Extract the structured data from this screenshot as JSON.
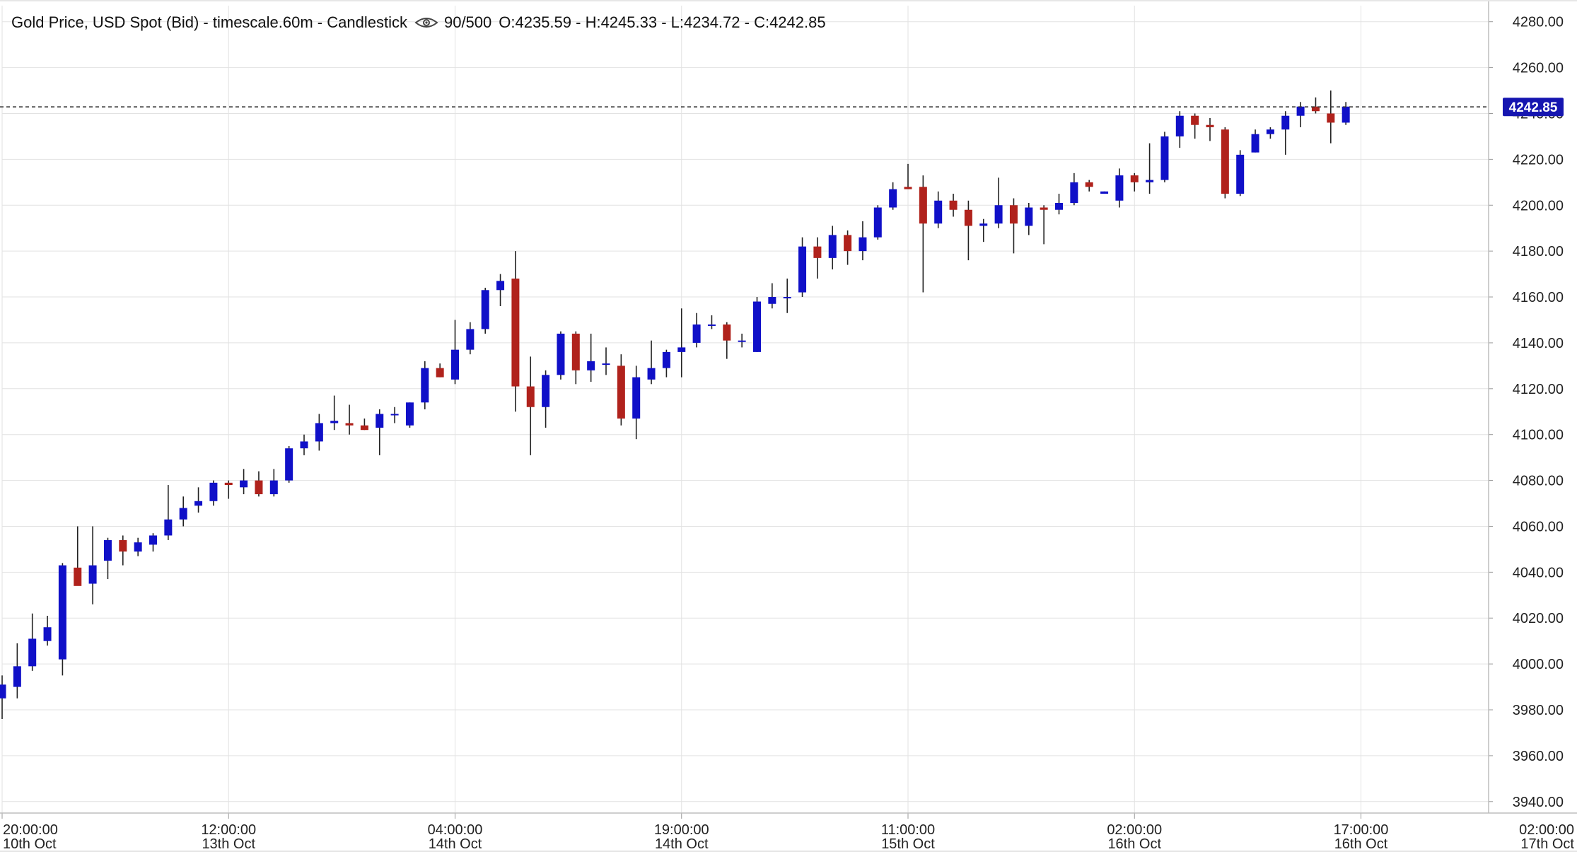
{
  "header": {
    "title": "Gold Price, USD Spot (Bid) - timescale.60m - Candlestick",
    "eye_icon": "eye-icon",
    "count": "90/500",
    "ohlc": "O:4235.59 - H:4245.33 - L:4234.72 - C:4242.85"
  },
  "colors": {
    "up": "#1010c8",
    "down": "#b0221c",
    "grid": "#e2e2e2",
    "price_line": "#333333",
    "badge": "#1515b0",
    "badge_text": "#ffffff"
  },
  "chart_data": {
    "type": "candlestick",
    "title": "Gold Price, USD Spot (Bid) - timescale.60m - Candlestick",
    "xlabel": "",
    "ylabel": "",
    "ylim": [
      3935,
      4287
    ],
    "y_ticks": [
      3940,
      3960,
      3980,
      4000,
      4020,
      4040,
      4060,
      4080,
      4100,
      4120,
      4140,
      4160,
      4180,
      4200,
      4220,
      4240,
      4260,
      4280
    ],
    "y_tick_labels": [
      "3940.00",
      "3960.00",
      "3980.00",
      "4000.00",
      "4020.00",
      "4040.00",
      "4060.00",
      "4080.00",
      "4100.00",
      "4120.00",
      "4140.00",
      "4160.00",
      "4180.00",
      "4200.00",
      "4220.00",
      "4240.00",
      "4260.00",
      "4280.00"
    ],
    "x_ticks": [
      {
        "index": 0,
        "time": "20:00:00",
        "date": "10th Oct"
      },
      {
        "index": 15,
        "time": "12:00:00",
        "date": "13th Oct"
      },
      {
        "index": 30,
        "time": "04:00:00",
        "date": "14th Oct"
      },
      {
        "index": 45,
        "time": "19:00:00",
        "date": "14th Oct"
      },
      {
        "index": 60,
        "time": "11:00:00",
        "date": "15th Oct"
      },
      {
        "index": 75,
        "time": "02:00:00",
        "date": "16th Oct"
      },
      {
        "index": 90,
        "time": "17:00:00",
        "date": "16th Oct"
      },
      {
        "index": 105,
        "time": "02:00:00",
        "date": "17th Oct"
      }
    ],
    "grid": true,
    "last_price": 4242.85,
    "last_price_label": "4242.85",
    "ohlc": [
      {
        "o": 3985,
        "h": 3995,
        "l": 3976,
        "c": 3991
      },
      {
        "o": 3990,
        "h": 4009,
        "l": 3985,
        "c": 3999
      },
      {
        "o": 3999,
        "h": 4022,
        "l": 3997,
        "c": 4011
      },
      {
        "o": 4010,
        "h": 4021,
        "l": 4008,
        "c": 4016
      },
      {
        "o": 4002,
        "h": 4044,
        "l": 3995,
        "c": 4043
      },
      {
        "o": 4042,
        "h": 4060,
        "l": 4037,
        "c": 4034
      },
      {
        "o": 4035,
        "h": 4060,
        "l": 4026,
        "c": 4043
      },
      {
        "o": 4045,
        "h": 4055,
        "l": 4037,
        "c": 4054
      },
      {
        "o": 4054,
        "h": 4056,
        "l": 4043,
        "c": 4049
      },
      {
        "o": 4049,
        "h": 4055,
        "l": 4047,
        "c": 4053
      },
      {
        "o": 4052,
        "h": 4057,
        "l": 4049,
        "c": 4056
      },
      {
        "o": 4056,
        "h": 4078,
        "l": 4054,
        "c": 4063
      },
      {
        "o": 4063,
        "h": 4073,
        "l": 4060,
        "c": 4068
      },
      {
        "o": 4069,
        "h": 4077,
        "l": 4066,
        "c": 4071
      },
      {
        "o": 4071,
        "h": 4080,
        "l": 4069,
        "c": 4079
      },
      {
        "o": 4079,
        "h": 4080,
        "l": 4072,
        "c": 4078
      },
      {
        "o": 4077,
        "h": 4085,
        "l": 4074,
        "c": 4080
      },
      {
        "o": 4080,
        "h": 4084,
        "l": 4073,
        "c": 4074
      },
      {
        "o": 4074,
        "h": 4085,
        "l": 4073,
        "c": 4080
      },
      {
        "o": 4080,
        "h": 4095,
        "l": 4079,
        "c": 4094
      },
      {
        "o": 4094,
        "h": 4100,
        "l": 4091,
        "c": 4097
      },
      {
        "o": 4097,
        "h": 4109,
        "l": 4093,
        "c": 4105
      },
      {
        "o": 4105,
        "h": 4117,
        "l": 4102,
        "c": 4106
      },
      {
        "o": 4105,
        "h": 4113,
        "l": 4100,
        "c": 4104
      },
      {
        "o": 4104,
        "h": 4107,
        "l": 4102,
        "c": 4102
      },
      {
        "o": 4103,
        "h": 4111,
        "l": 4091,
        "c": 4109
      },
      {
        "o": 4109,
        "h": 4112,
        "l": 4105,
        "c": 4109
      },
      {
        "o": 4104,
        "h": 4114,
        "l": 4103,
        "c": 4114
      },
      {
        "o": 4114,
        "h": 4132,
        "l": 4111,
        "c": 4129
      },
      {
        "o": 4129,
        "h": 4131,
        "l": 4125,
        "c": 4125
      },
      {
        "o": 4124,
        "h": 4150,
        "l": 4122,
        "c": 4137
      },
      {
        "o": 4137,
        "h": 4149,
        "l": 4135,
        "c": 4146
      },
      {
        "o": 4146,
        "h": 4164,
        "l": 4144,
        "c": 4163
      },
      {
        "o": 4163,
        "h": 4170,
        "l": 4156,
        "c": 4167
      },
      {
        "o": 4168,
        "h": 4180,
        "l": 4110,
        "c": 4121
      },
      {
        "o": 4121,
        "h": 4134,
        "l": 4091,
        "c": 4112
      },
      {
        "o": 4112,
        "h": 4128,
        "l": 4103,
        "c": 4126
      },
      {
        "o": 4126,
        "h": 4145,
        "l": 4124,
        "c": 4144
      },
      {
        "o": 4144,
        "h": 4145,
        "l": 4122,
        "c": 4128
      },
      {
        "o": 4128,
        "h": 4144,
        "l": 4123,
        "c": 4132
      },
      {
        "o": 4131,
        "h": 4138,
        "l": 4126,
        "c": 4131
      },
      {
        "o": 4130,
        "h": 4135,
        "l": 4104,
        "c": 4107
      },
      {
        "o": 4107,
        "h": 4130,
        "l": 4098,
        "c": 4125
      },
      {
        "o": 4124,
        "h": 4141,
        "l": 4122,
        "c": 4129
      },
      {
        "o": 4129,
        "h": 4137,
        "l": 4125,
        "c": 4136
      },
      {
        "o": 4136,
        "h": 4155,
        "l": 4125,
        "c": 4138
      },
      {
        "o": 4140,
        "h": 4153,
        "l": 4138,
        "c": 4148
      },
      {
        "o": 4148,
        "h": 4152,
        "l": 4146,
        "c": 4148
      },
      {
        "o": 4148,
        "h": 4149,
        "l": 4133,
        "c": 4141
      },
      {
        "o": 4141,
        "h": 4144,
        "l": 4138,
        "c": 4141
      },
      {
        "o": 4136,
        "h": 4160,
        "l": 4136,
        "c": 4158
      },
      {
        "o": 4157,
        "h": 4166,
        "l": 4155,
        "c": 4160
      },
      {
        "o": 4160,
        "h": 4168,
        "l": 4153,
        "c": 4160
      },
      {
        "o": 4162,
        "h": 4186,
        "l": 4160,
        "c": 4182
      },
      {
        "o": 4182,
        "h": 4186,
        "l": 4168,
        "c": 4177
      },
      {
        "o": 4177,
        "h": 4191,
        "l": 4172,
        "c": 4187
      },
      {
        "o": 4187,
        "h": 4189,
        "l": 4174,
        "c": 4180
      },
      {
        "o": 4180,
        "h": 4193,
        "l": 4176,
        "c": 4186
      },
      {
        "o": 4186,
        "h": 4200,
        "l": 4185,
        "c": 4199
      },
      {
        "o": 4199,
        "h": 4210,
        "l": 4198,
        "c": 4207
      },
      {
        "o": 4208,
        "h": 4218,
        "l": 4207,
        "c": 4207
      },
      {
        "o": 4208,
        "h": 4213,
        "l": 4162,
        "c": 4192
      },
      {
        "o": 4192,
        "h": 4206,
        "l": 4190,
        "c": 4202
      },
      {
        "o": 4202,
        "h": 4205,
        "l": 4195,
        "c": 4198
      },
      {
        "o": 4198,
        "h": 4202,
        "l": 4176,
        "c": 4191
      },
      {
        "o": 4191,
        "h": 4194,
        "l": 4184,
        "c": 4192
      },
      {
        "o": 4192,
        "h": 4212,
        "l": 4190,
        "c": 4200
      },
      {
        "o": 4200,
        "h": 4203,
        "l": 4179,
        "c": 4192
      },
      {
        "o": 4191,
        "h": 4201,
        "l": 4187,
        "c": 4199
      },
      {
        "o": 4199,
        "h": 4200,
        "l": 4183,
        "c": 4198
      },
      {
        "o": 4198,
        "h": 4205,
        "l": 4196,
        "c": 4201
      },
      {
        "o": 4201,
        "h": 4214,
        "l": 4200,
        "c": 4210
      },
      {
        "o": 4210,
        "h": 4211,
        "l": 4206,
        "c": 4208
      },
      {
        "o": 4205,
        "h": 4206,
        "l": 4205,
        "c": 4206
      },
      {
        "o": 4202,
        "h": 4216,
        "l": 4199,
        "c": 4213
      },
      {
        "o": 4213,
        "h": 4214,
        "l": 4206,
        "c": 4210
      },
      {
        "o": 4210,
        "h": 4227,
        "l": 4205,
        "c": 4211
      },
      {
        "o": 4211,
        "h": 4232,
        "l": 4210,
        "c": 4230
      },
      {
        "o": 4230,
        "h": 4241,
        "l": 4225,
        "c": 4239
      },
      {
        "o": 4239,
        "h": 4240,
        "l": 4229,
        "c": 4235
      },
      {
        "o": 4235,
        "h": 4238,
        "l": 4228,
        "c": 4234
      },
      {
        "o": 4233,
        "h": 4234,
        "l": 4203,
        "c": 4205
      },
      {
        "o": 4205,
        "h": 4224,
        "l": 4204,
        "c": 4222
      },
      {
        "o": 4223,
        "h": 4233,
        "l": 4223,
        "c": 4231
      },
      {
        "o": 4231,
        "h": 4234,
        "l": 4229,
        "c": 4233
      },
      {
        "o": 4233,
        "h": 4241,
        "l": 4222,
        "c": 4239
      },
      {
        "o": 4239,
        "h": 4245,
        "l": 4234,
        "c": 4243
      },
      {
        "o": 4243,
        "h": 4247,
        "l": 4240,
        "c": 4241
      },
      {
        "o": 4240,
        "h": 4250,
        "l": 4227,
        "c": 4236
      },
      {
        "o": 4236,
        "h": 4245,
        "l": 4235,
        "c": 4243
      }
    ]
  }
}
